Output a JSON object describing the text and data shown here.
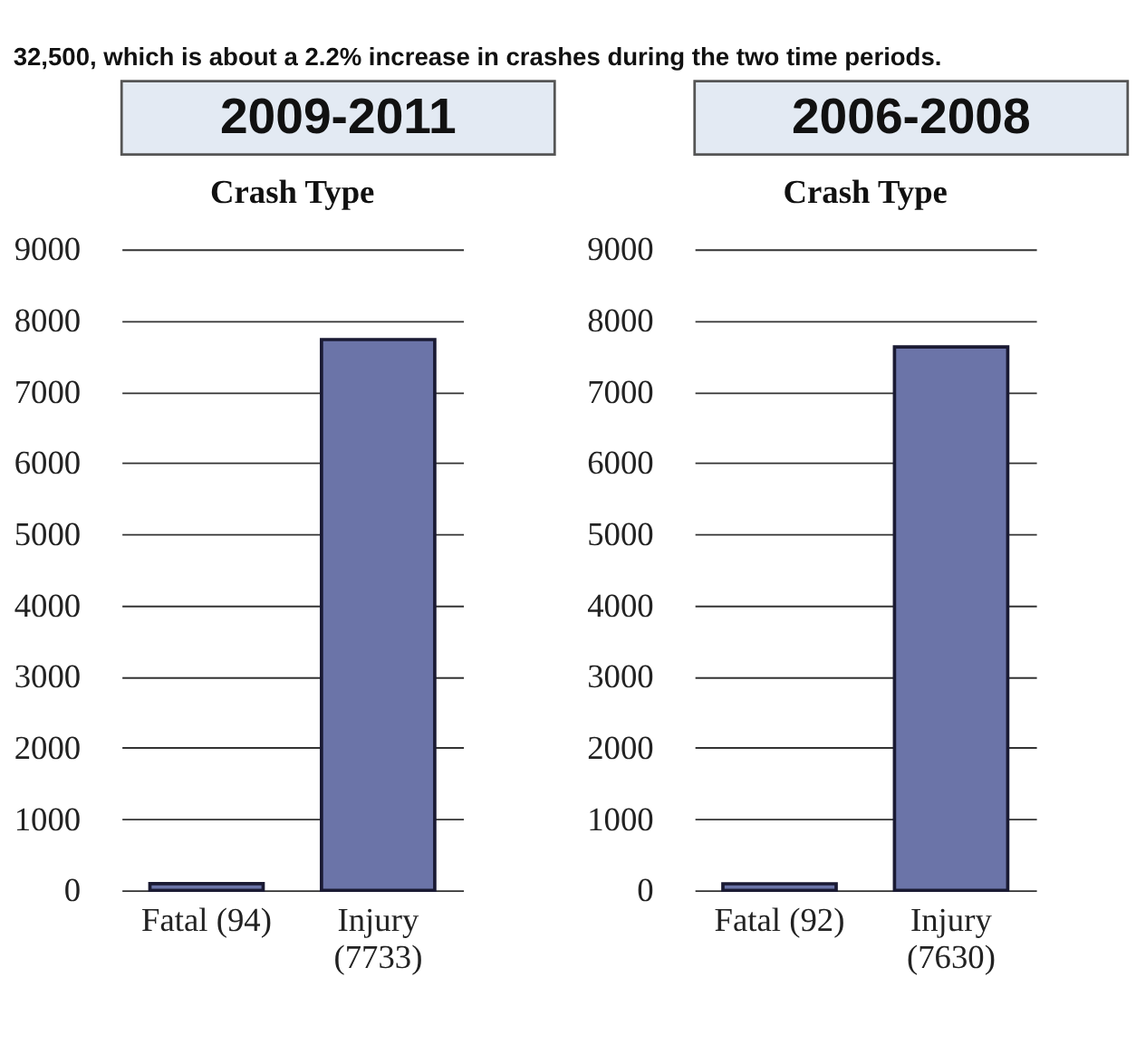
{
  "chart_data": [
    {
      "type": "bar",
      "title": "2009-2011",
      "subtitle": "Crash Type",
      "annotations": [
        "32,500, which is about a 2.2% increase in crashes during the two time periods."
      ],
      "categories": [
        "Fatal (94)",
        "Injury (7733)"
      ],
      "values": [
        94,
        7733
      ],
      "color": "#6b74a8",
      "ylim": [
        0,
        9000
      ],
      "yticks": [
        0,
        1000,
        2000,
        3000,
        4000,
        5000,
        6000,
        7000,
        8000,
        9000
      ],
      "grid": "y"
    },
    {
      "type": "bar",
      "title": "2006-2008",
      "subtitle": "Crash Type",
      "categories": [
        "Fatal (92)",
        "Injury (7630)"
      ],
      "values": [
        92,
        7630
      ],
      "color": "#6b74a8",
      "ylim": [
        0,
        9000
      ],
      "yticks": [
        0,
        1000,
        2000,
        3000,
        4000,
        5000,
        6000,
        7000,
        8000,
        9000
      ],
      "grid": "y"
    }
  ]
}
